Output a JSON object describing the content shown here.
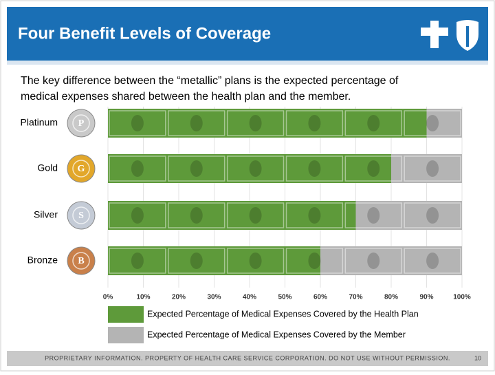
{
  "slide": {
    "title": "Four Benefit Levels of Coverage",
    "text": [
      "The key difference between the “metallic” plans is the expected percentage of",
      "medical expenses shared between the health plan and the member."
    ],
    "footer": "PROPRIETARY INFORMATION. PROPERTY OF HEALTH CARE SERVICE CORPORATION. DO NOT USE WITHOUT PERMISSION.",
    "page": 10
  },
  "chart_data": {
    "type": "bar",
    "orientation": "horizontal",
    "stacked": true,
    "categories": [
      "Platinum",
      "Gold",
      "Silver",
      "Bronze"
    ],
    "badges": [
      "P",
      "G",
      "S",
      "B"
    ],
    "badge_colors": [
      "#c9c9c9",
      "#e2a72a",
      "#c4cbd6",
      "#c9804a"
    ],
    "series": [
      {
        "name": "Expected Percentage of Medical Expenses Covered by the Health Plan",
        "color": "#5e9a3a",
        "values": [
          90,
          80,
          70,
          60
        ]
      },
      {
        "name": "Expected Percentage of Medical Expenses Covered by the Member",
        "color": "#b4b4b4",
        "values": [
          10,
          20,
          30,
          40
        ]
      }
    ],
    "xlim": [
      0,
      100
    ],
    "xticks": [
      {
        "value": 0,
        "label": "0%"
      },
      {
        "value": 10,
        "label": "10%"
      },
      {
        "value": 20,
        "label": "20%"
      },
      {
        "value": 30,
        "label": "30%"
      },
      {
        "value": 40,
        "label": "40%"
      },
      {
        "value": 50,
        "label": "50%"
      },
      {
        "value": 60,
        "label": "60%"
      },
      {
        "value": 70,
        "label": "70%"
      },
      {
        "value": 80,
        "label": "80%"
      },
      {
        "value": 90,
        "label": "90%"
      },
      {
        "value": 100,
        "label": "100%"
      }
    ],
    "grid": true
  }
}
